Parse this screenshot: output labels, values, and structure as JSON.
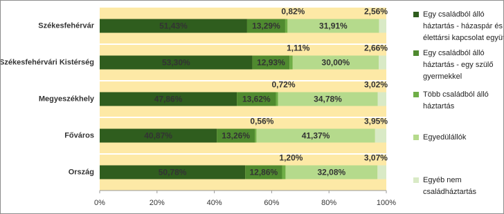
{
  "chart_data": {
    "type": "bar",
    "orientation": "horizontal",
    "stacked": true,
    "categories": [
      "Székesfehérvár",
      "Székesfehérvári Kistérség",
      "Megyeszékhely",
      "Főváros",
      "Ország"
    ],
    "series": [
      {
        "name": "Egy családból álló háztartás - házaspár és élettársi kapcsolat együtt",
        "color": "#2f5d1e",
        "values": [
          51.43,
          53.3,
          47.86,
          40.87,
          50.78
        ],
        "value_labels": [
          "51,43%",
          "53,30%",
          "47,86%",
          "40,87%",
          "50,78%"
        ]
      },
      {
        "name": "Egy családból álló háztartás - egy szülő gyermekkel",
        "color": "#4f8a2f",
        "values": [
          13.29,
          12.93,
          13.62,
          13.26,
          12.86
        ],
        "value_labels": [
          "13,29%",
          "12,93%",
          "13,62%",
          "13,26%",
          "12,86%"
        ]
      },
      {
        "name": "Több családból álló háztartás",
        "color": "#6fae47",
        "values": [
          0.82,
          1.11,
          0.72,
          0.56,
          1.2
        ],
        "value_labels": [
          "0,82%",
          "1,11%",
          "0,72%",
          "0,56%",
          "1,20%"
        ]
      },
      {
        "name": "Egyedülállók",
        "color": "#b5da8c",
        "values": [
          31.91,
          30.0,
          34.78,
          41.37,
          32.08
        ],
        "value_labels": [
          "31,91%",
          "30,00%",
          "34,78%",
          "41,37%",
          "32,08%"
        ]
      },
      {
        "name": "Egyéb nem családháztartás",
        "color": "#d9eac6",
        "values": [
          2.56,
          2.66,
          3.02,
          3.95,
          3.07
        ],
        "value_labels": [
          "2,56%",
          "2,66%",
          "3,02%",
          "3,95%",
          "3,07%"
        ]
      }
    ],
    "xlim": [
      0,
      100
    ],
    "xticks": [
      {
        "value": 0,
        "label": "0%"
      },
      {
        "value": 20,
        "label": "20%"
      },
      {
        "value": 40,
        "label": "40%"
      },
      {
        "value": 60,
        "label": "60%"
      },
      {
        "value": 80,
        "label": "80%"
      },
      {
        "value": 100,
        "label": "100%"
      }
    ],
    "legend": "right"
  }
}
